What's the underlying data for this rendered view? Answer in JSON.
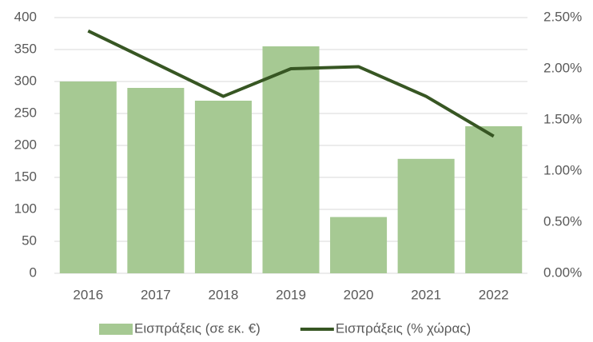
{
  "chart_data": {
    "type": "bar",
    "categories": [
      "2016",
      "2017",
      "2018",
      "2019",
      "2020",
      "2021",
      "2022"
    ],
    "series": [
      {
        "name": "Εισπράξεις (σε εκ. €)",
        "type": "bar",
        "color": "#a6c993",
        "values": [
          300,
          290,
          270,
          355,
          88,
          179,
          230
        ]
      },
      {
        "name": "Εισπράξεις (% χώρας)",
        "type": "line",
        "axis": "y2",
        "color": "#375623",
        "values": [
          2.37,
          2.05,
          1.73,
          2.0,
          2.02,
          1.73,
          1.34
        ]
      }
    ],
    "ylim": [
      0,
      400
    ],
    "yticks": [
      0,
      50,
      100,
      150,
      200,
      250,
      300,
      350,
      400
    ],
    "y2lim": [
      0,
      2.5
    ],
    "y2ticks": [
      {
        "value": 0,
        "label": "0.00%"
      },
      {
        "value": 0.5,
        "label": "0.50%"
      },
      {
        "value": 1,
        "label": "1.00%"
      },
      {
        "value": 1.5,
        "label": "1.50%"
      },
      {
        "value": 2,
        "label": "2.00%"
      },
      {
        "value": 2.5,
        "label": "2.50%"
      }
    ],
    "grid": true,
    "legend": "bottom"
  }
}
